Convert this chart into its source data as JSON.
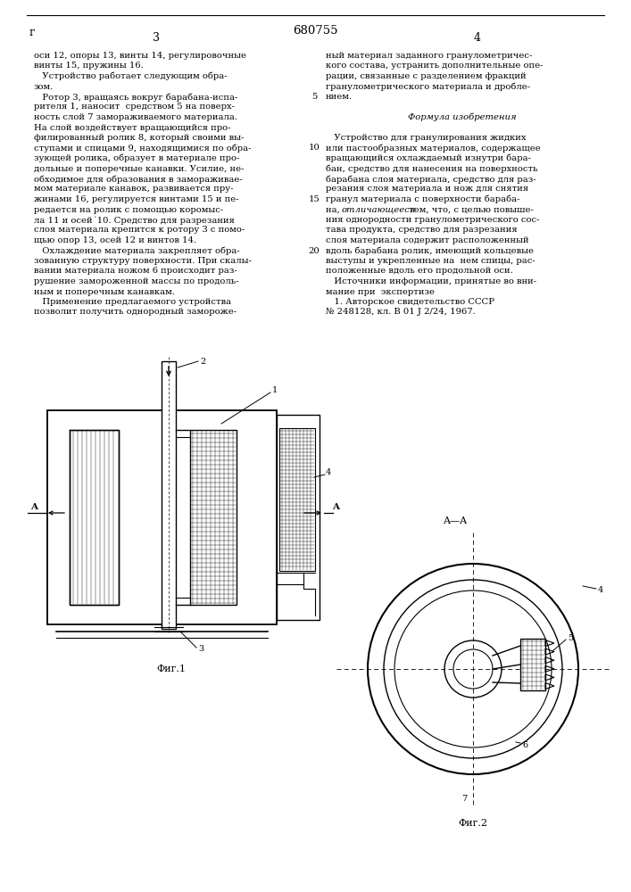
{
  "page_width": 7.07,
  "page_height": 10.0,
  "background": "#ffffff",
  "patent_number": "680755",
  "line_color": "#000000",
  "text_color": "#000000",
  "fig1_label": "Фиг.1",
  "fig2_label": "Фиг.2",
  "section_label": "A—A"
}
